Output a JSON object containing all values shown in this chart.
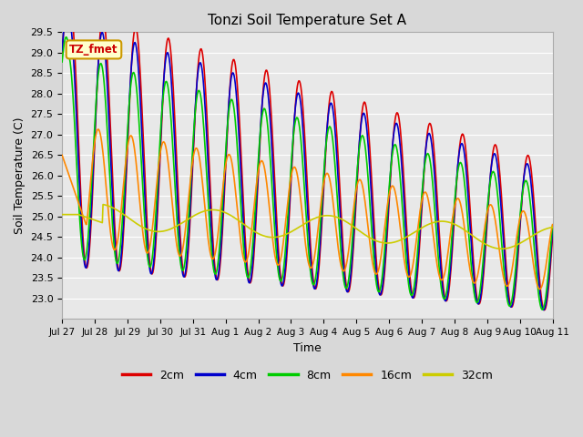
{
  "title": "Tonzi Soil Temperature Set A",
  "xlabel": "Time",
  "ylabel": "Soil Temperature (C)",
  "annotation_text": "TZ_fmet",
  "annotation_bg": "#ffffcc",
  "annotation_border": "#cc9900",
  "annotation_text_color": "#cc0000",
  "ylim": [
    22.5,
    29.5
  ],
  "fig_bg_color": "#d8d8d8",
  "plot_bg_color": "#e8e8e8",
  "grid_color": "#ffffff",
  "xtick_labels": [
    "Jul 27",
    "Jul 28",
    "Jul 29",
    "Jul 30",
    "Jul 31",
    "Aug 1",
    "Aug 2",
    "Aug 3",
    "Aug 4",
    "Aug 5",
    "Aug 6",
    "Aug 7",
    "Aug 8",
    "Aug 9",
    "Aug 10",
    "Aug 11"
  ],
  "series_colors": [
    "#dd0000",
    "#0000cc",
    "#00cc00",
    "#ff8800",
    "#cccc00"
  ],
  "series_names": [
    "2cm",
    "4cm",
    "8cm",
    "16cm",
    "32cm"
  ],
  "linewidth": 1.2
}
